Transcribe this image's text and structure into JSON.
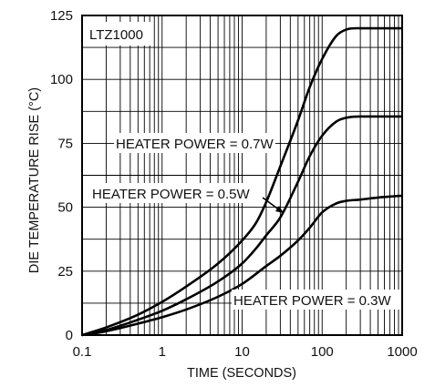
{
  "chart_data": {
    "type": "line",
    "xscale": "log",
    "xlim": [
      0.1,
      1000
    ],
    "ylim": [
      0,
      125
    ],
    "xticks": [
      0.1,
      1,
      10,
      100,
      1000
    ],
    "xtick_labels": [
      "0.1",
      "1",
      "10",
      "100",
      "1000"
    ],
    "yticks": [
      0,
      25,
      50,
      75,
      100,
      125
    ],
    "ytick_labels": [
      "0",
      "25",
      "50",
      "75",
      "100",
      "125"
    ],
    "xlabel": "TIME (SECONDS)",
    "ylabel": "DIE TEMPERATURE RISE (°C)",
    "inset_label": "LTZ1000",
    "grid": true,
    "line_color": "#000000",
    "series": [
      {
        "name": "HEATER POWER = 0.7W",
        "x": [
          0.1,
          0.2,
          0.5,
          1,
          2,
          5,
          10,
          15,
          20,
          30,
          50,
          70,
          100,
          150,
          200,
          300,
          500,
          1000
        ],
        "y": [
          0,
          3,
          8,
          13,
          19,
          28,
          37,
          44,
          52,
          66,
          84,
          97,
          108,
          117,
          119.5,
          120,
          120,
          120
        ]
      },
      {
        "name": "HEATER POWER = 0.5W",
        "x": [
          0.1,
          0.2,
          0.5,
          1,
          2,
          5,
          10,
          15,
          20,
          30,
          50,
          70,
          100,
          150,
          200,
          300,
          500,
          1000
        ],
        "y": [
          0,
          2,
          6,
          9.5,
          14,
          21,
          28,
          34,
          39,
          46,
          60,
          70,
          78,
          83.5,
          85,
          85.5,
          85.5,
          85.5
        ]
      },
      {
        "name": "HEATER POWER = 0.3W",
        "x": [
          0.1,
          0.2,
          0.5,
          1,
          2,
          5,
          10,
          20,
          30,
          50,
          70,
          100,
          150,
          200,
          300,
          500,
          1000
        ],
        "y": [
          0,
          1.5,
          4.5,
          7,
          10,
          15,
          20,
          27,
          31,
          37,
          42,
          48,
          51.5,
          52.5,
          53,
          53.8,
          54.5
        ]
      }
    ],
    "annotations": [
      {
        "text": "HEATER POWER = 0.7W"
      },
      {
        "text": "HEATER POWER = 0.5W"
      },
      {
        "text": "HEATER POWER = 0.3W"
      }
    ]
  }
}
